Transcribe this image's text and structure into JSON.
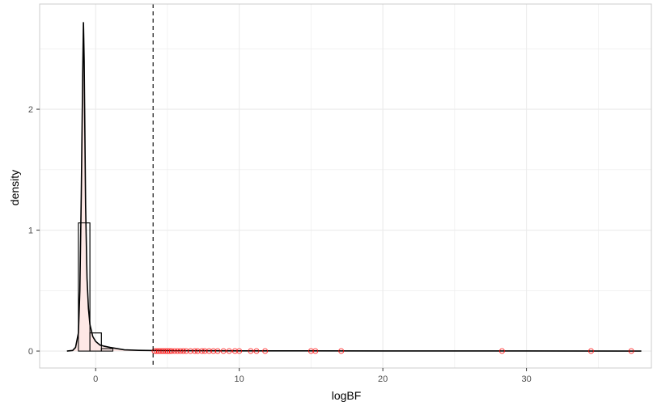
{
  "chart_data": {
    "type": "histogram-density",
    "title": "",
    "xlabel": "logBF",
    "ylabel": "density",
    "xlim": [
      -3.9,
      38.7
    ],
    "ylim": [
      -0.14,
      2.87
    ],
    "x_ticks": [
      0,
      10,
      20,
      30
    ],
    "x_tick_labels": [
      "0",
      "10",
      "20",
      "30"
    ],
    "y_ticks": [
      0,
      1,
      2
    ],
    "y_tick_labels": [
      "0",
      "1",
      "2"
    ],
    "grid": true,
    "legend": "none",
    "threshold_line": {
      "x": 4,
      "style": "dashed"
    },
    "histogram": {
      "bin_width": 0.8,
      "bins": [
        {
          "x0": -1.2,
          "x1": -0.4,
          "density": 1.06
        },
        {
          "x0": -0.4,
          "x1": 0.4,
          "density": 0.15
        },
        {
          "x0": 0.4,
          "x1": 1.2,
          "density": 0.02
        }
      ]
    },
    "density_curve": {
      "x": [
        -2.0,
        -1.6,
        -1.4,
        -1.2,
        -1.1,
        -1.0,
        -0.9,
        -0.85,
        -0.8,
        -0.75,
        -0.7,
        -0.6,
        -0.5,
        -0.4,
        -0.2,
        0.0,
        0.3,
        0.6,
        1.0,
        1.5,
        2.0,
        3.0,
        5.0,
        10.0,
        20.0,
        30.0,
        38.0
      ],
      "y": [
        0.0,
        0.005,
        0.03,
        0.15,
        0.5,
        1.3,
        2.3,
        2.72,
        2.4,
        1.8,
        1.2,
        0.6,
        0.35,
        0.22,
        0.12,
        0.08,
        0.05,
        0.04,
        0.03,
        0.02,
        0.01,
        0.006,
        0.003,
        0.002,
        0.001,
        0.001,
        0.0
      ]
    },
    "points": {
      "color": "#ff0000",
      "y": 0,
      "x": [
        4.1,
        4.25,
        4.4,
        4.55,
        4.7,
        4.85,
        5.0,
        5.15,
        5.3,
        5.5,
        5.7,
        5.9,
        6.1,
        6.3,
        6.6,
        6.9,
        7.1,
        7.4,
        7.6,
        7.9,
        8.2,
        8.5,
        8.9,
        9.3,
        9.7,
        10.0,
        10.8,
        11.2,
        11.8,
        15.0,
        15.3,
        17.1,
        28.3,
        34.5,
        37.3
      ]
    },
    "colors": {
      "fill": "#fde0dd",
      "line": "#000000",
      "point": "#ff0000",
      "grid": "#ebebeb",
      "panel_border": "#cccccc"
    }
  }
}
